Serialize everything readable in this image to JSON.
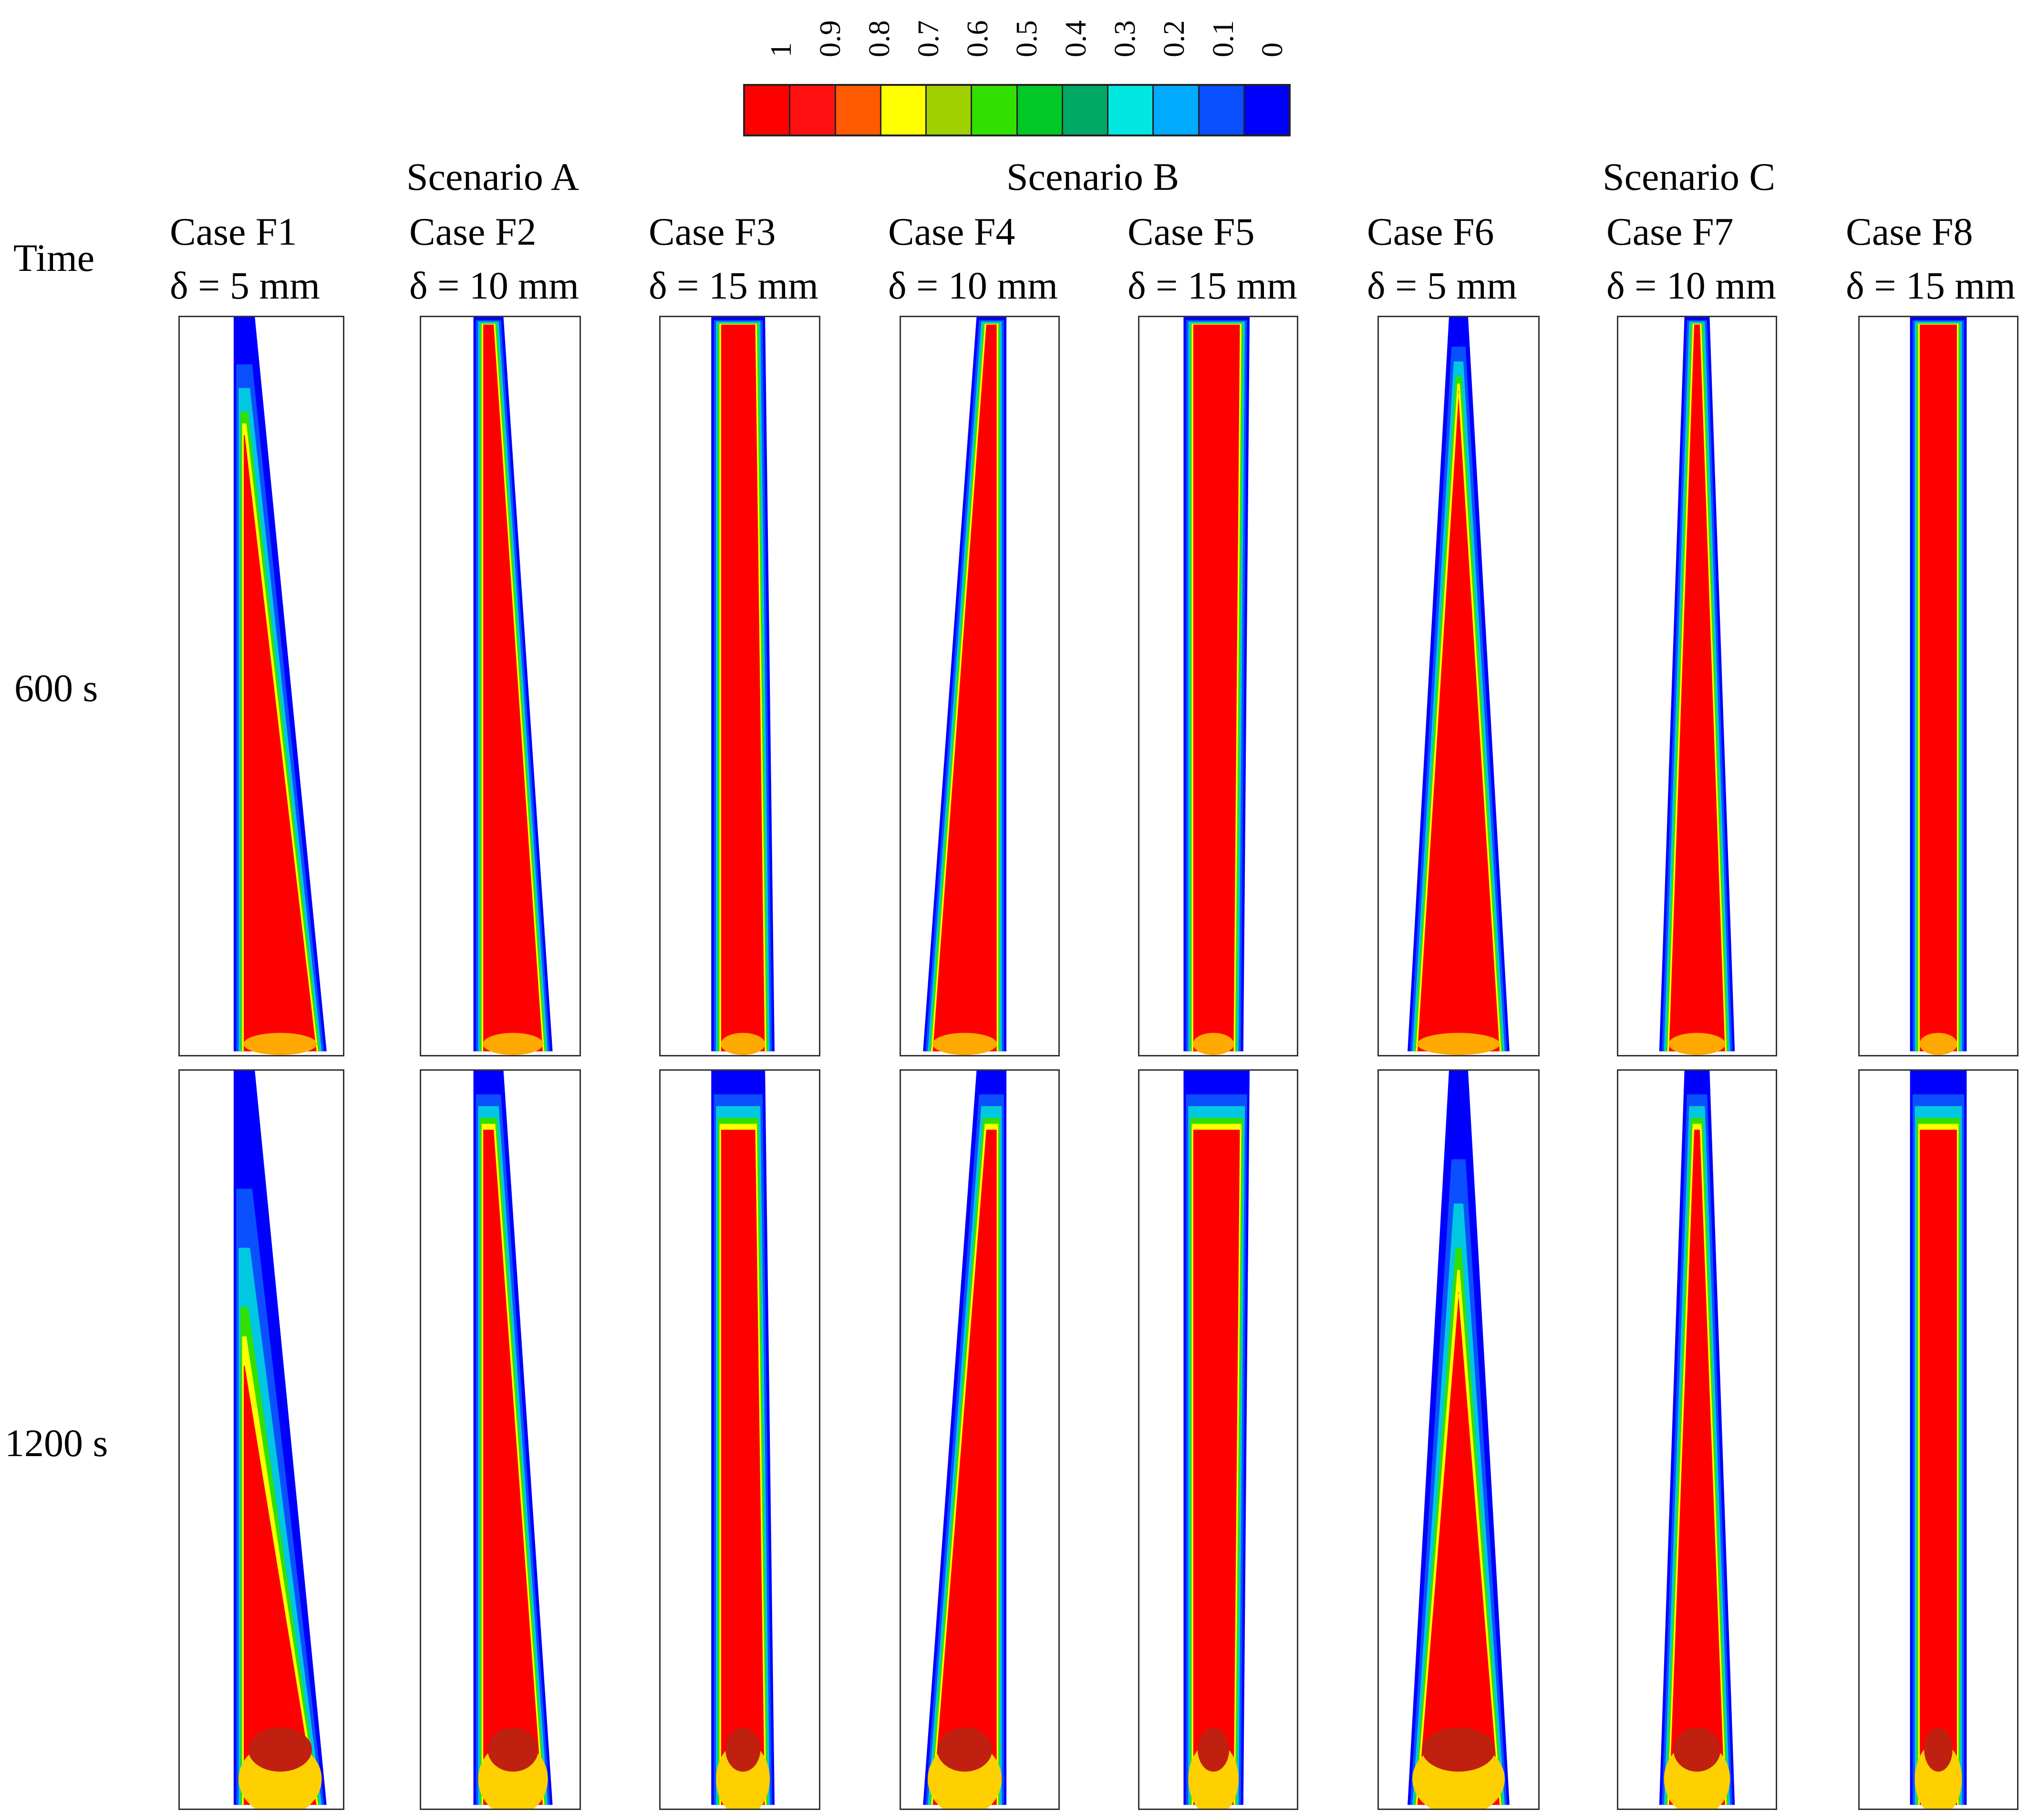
{
  "legend": {
    "ticks": [
      "1",
      "0.9",
      "0.8",
      "0.7",
      "0.6",
      "0.5",
      "0.4",
      "0.3",
      "0.2",
      "0.1",
      "0"
    ],
    "colors": [
      "#ff0000",
      "#ff0f0f",
      "#ff5a00",
      "#ffff00",
      "#a0d000",
      "#32e000",
      "#00c828",
      "#00aa64",
      "#00e8e0",
      "#00aaff",
      "#0a50ff",
      "#0000ff"
    ]
  },
  "header": {
    "time_label": "Time",
    "scenarios": [
      "Scenario A",
      "Scenario B",
      "Scenario C"
    ]
  },
  "cases": [
    {
      "name": "Case F1",
      "delta": "δ = 5 mm"
    },
    {
      "name": "Case F2",
      "delta": "δ = 10 mm"
    },
    {
      "name": "Case F3",
      "delta": "δ = 15 mm"
    },
    {
      "name": "Case F4",
      "delta": "δ = 10 mm"
    },
    {
      "name": "Case F5",
      "delta": "δ = 15 mm"
    },
    {
      "name": "Case F6",
      "delta": "δ = 5 mm"
    },
    {
      "name": "Case F7",
      "delta": "δ = 10 mm"
    },
    {
      "name": "Case F8",
      "delta": "δ = 15 mm"
    }
  ],
  "rows": [
    {
      "time": "600 s"
    },
    {
      "time": "1200 s"
    }
  ]
}
